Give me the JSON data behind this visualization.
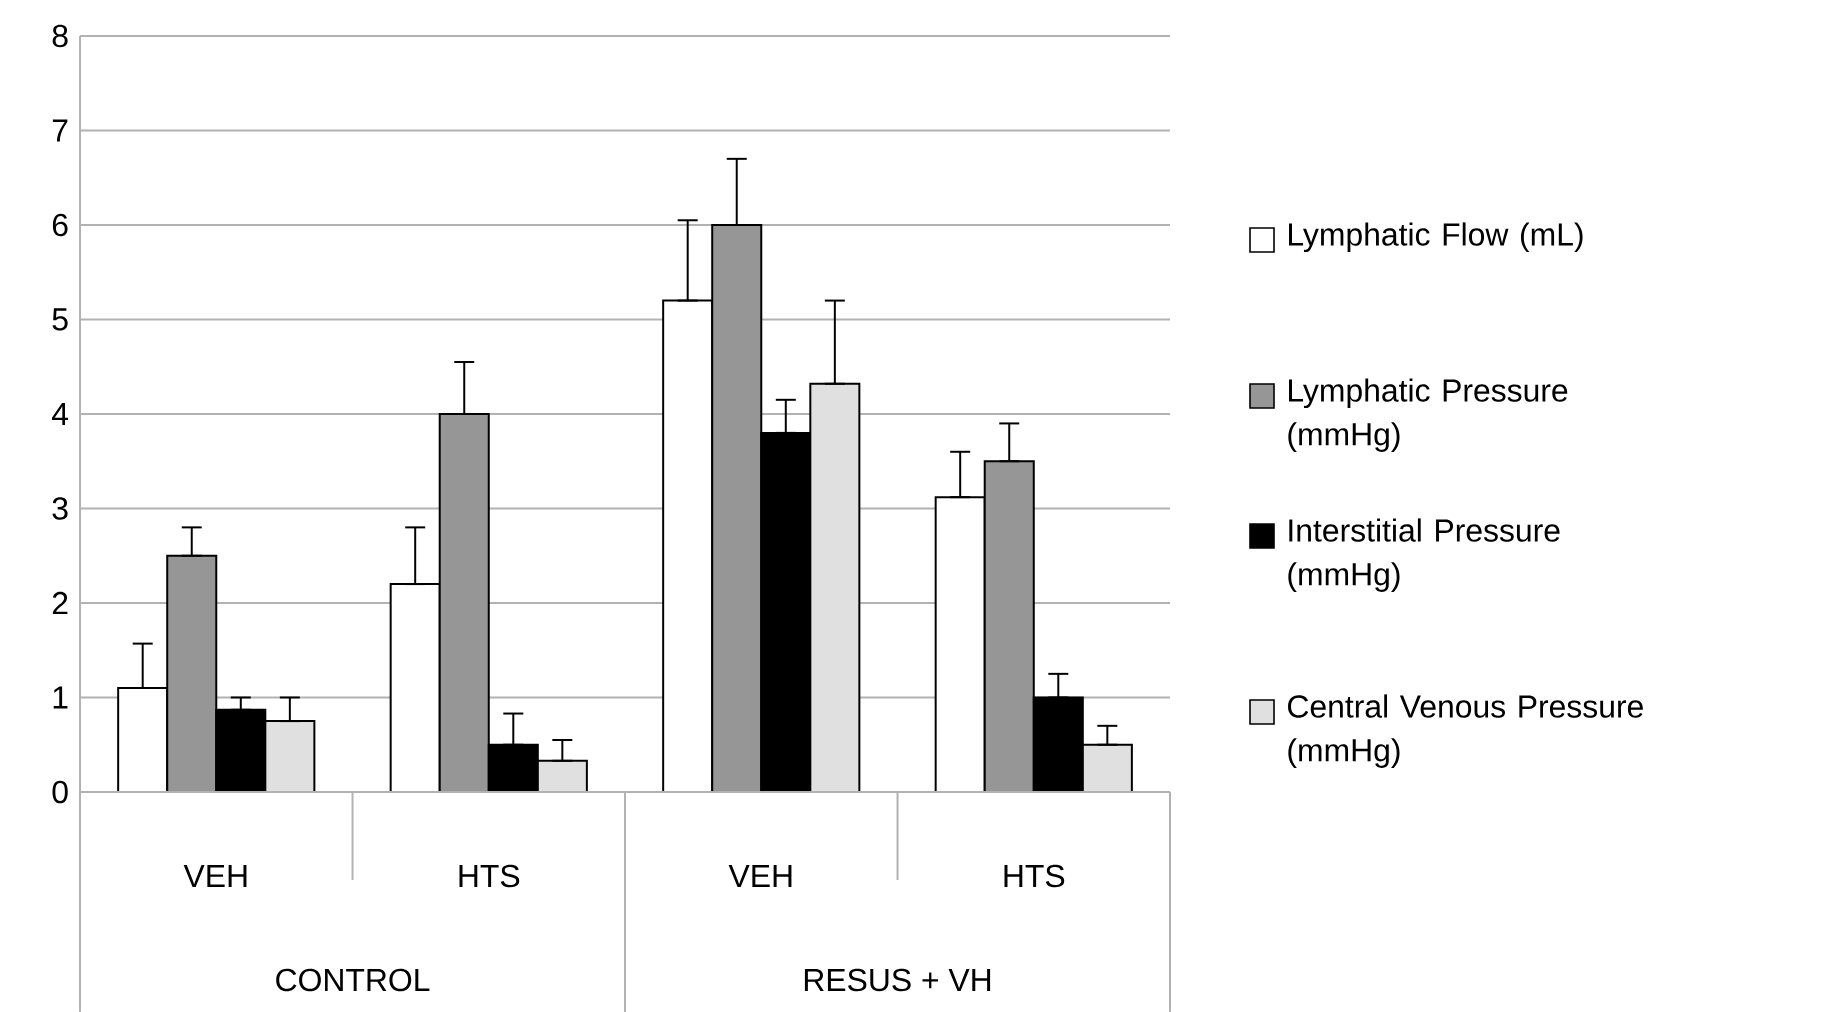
{
  "chart_data": {
    "type": "bar",
    "categories": [
      "VEH",
      "HTS",
      "VEH",
      "HTS"
    ],
    "annotations": [
      "CONTROL",
      "RESUS + VH"
    ],
    "ylim": [
      0,
      8
    ],
    "yticks": [
      0,
      1,
      2,
      3,
      4,
      5,
      6,
      7,
      8
    ],
    "grid": "y",
    "legend": "right",
    "series": [
      {
        "name": "Lymphatic Flow (mL)",
        "color": "#ffffff",
        "values": [
          1.1,
          2.2,
          5.2,
          3.12
        ],
        "errors": [
          [
            1.1,
            1.57
          ],
          [
            2.2,
            2.8
          ],
          [
            5.2,
            6.05
          ],
          [
            3.12,
            3.6
          ]
        ]
      },
      {
        "name": "Lymphatic Pressure (mmHg)",
        "color": "#969696",
        "values": [
          2.5,
          4.0,
          6.0,
          3.5
        ],
        "errors": [
          [
            2.5,
            2.8
          ],
          [
            4.0,
            4.55
          ],
          [
            6.0,
            6.7
          ],
          [
            3.5,
            3.9
          ]
        ]
      },
      {
        "name": "Interstitial Pressure (mmHg)",
        "color": "#000000",
        "values": [
          0.87,
          0.5,
          3.8,
          1.0
        ],
        "errors": [
          [
            0.87,
            1.0
          ],
          [
            0.5,
            0.83
          ],
          [
            3.8,
            4.15
          ],
          [
            1.0,
            1.25
          ]
        ]
      },
      {
        "name": "Central Venous Pressure (mmHg)",
        "color": "#e0e0e0",
        "values": [
          0.75,
          0.33,
          4.32,
          0.5
        ],
        "errors": [
          [
            0.75,
            1.0
          ],
          [
            0.33,
            0.55
          ],
          [
            4.32,
            5.2
          ],
          [
            0.5,
            0.7
          ]
        ]
      }
    ]
  }
}
